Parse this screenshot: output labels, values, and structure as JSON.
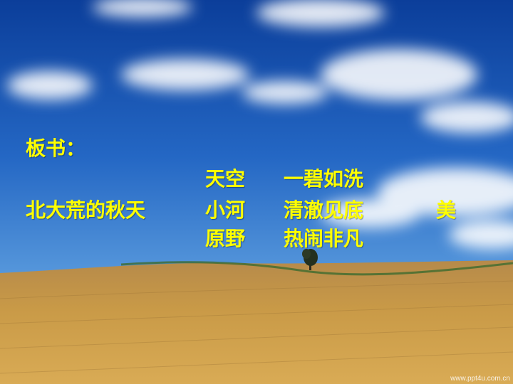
{
  "slide": {
    "heading": "板书：",
    "topic": "北大荒的秋天",
    "rows": [
      {
        "subject": "天空",
        "phrase": "一碧如洗"
      },
      {
        "subject": "小河",
        "phrase": "清澈见底"
      },
      {
        "subject": "原野",
        "phrase": "热闹非凡"
      }
    ],
    "conclusion": "美"
  },
  "watermark": "www.ppt4u.com.cn",
  "colors": {
    "text": "#FFFF00",
    "sky_top": "#0B3E9A",
    "sky_bottom": "#3E8BD6",
    "field": "#C99A47"
  }
}
